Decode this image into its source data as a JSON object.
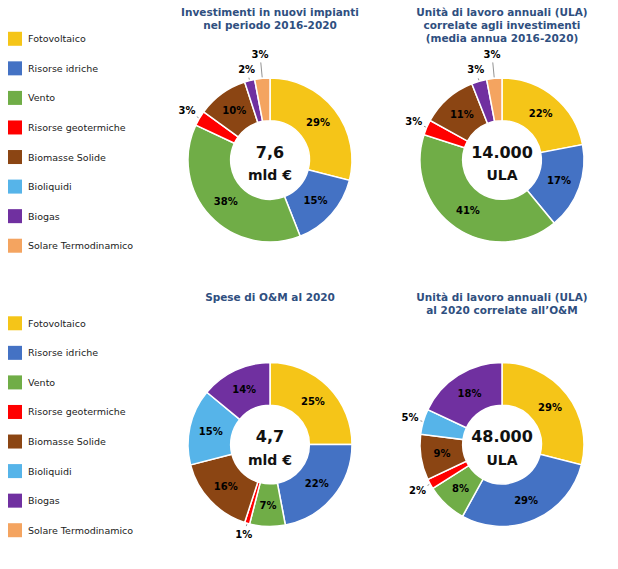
{
  "chart_data": [
    {
      "type": "donut",
      "title": "Investimenti in nuovi impianti\nnel periodo 2016-2020",
      "annotations": [
        "7,6",
        "mld €"
      ],
      "categories": [
        "Fotovoltaico",
        "Risorse idriche",
        "Vento",
        "Risorse geotermiche",
        "Biomasse Solide",
        "Bioliquidi",
        "Biogas",
        "Solare Termodinamico"
      ],
      "values": [
        29,
        15,
        38,
        3,
        10,
        0,
        2,
        3
      ],
      "value_labels": [
        "29%",
        "15%",
        "38%",
        "3%",
        "10%",
        null,
        "2%",
        "3%"
      ],
      "colors": [
        "#F5C518",
        "#4472C4",
        "#70AD47",
        "#FF0000",
        "#8B4513",
        "#56B4E9",
        "#7030A0",
        "#F4A460"
      ],
      "data_labels": true,
      "legend": "left"
    },
    {
      "type": "donut",
      "title": "Unità di lavoro annuali (ULA)\ncorrelate agli investimenti\n(media annua 2016-2020)",
      "annotations": [
        "14.000",
        "ULA"
      ],
      "categories": [
        "Fotovoltaico",
        "Risorse idriche",
        "Vento",
        "Risorse geotermiche",
        "Biomasse Solide",
        "Bioliquidi",
        "Biogas",
        "Solare Termodinamico"
      ],
      "values": [
        22,
        17,
        41,
        3,
        11,
        0,
        3,
        3
      ],
      "value_labels": [
        "22%",
        "17%",
        "41%",
        "3%",
        "11%",
        null,
        "3%",
        "3%"
      ],
      "colors": [
        "#F5C518",
        "#4472C4",
        "#70AD47",
        "#FF0000",
        "#8B4513",
        "#56B4E9",
        "#7030A0",
        "#F4A460"
      ],
      "data_labels": true
    },
    {
      "type": "donut",
      "title": "Spese di O&M al 2020",
      "annotations": [
        "4,7",
        "mld €"
      ],
      "categories": [
        "Fotovoltaico",
        "Risorse idriche",
        "Vento",
        "Risorse geotermiche",
        "Biomasse Solide",
        "Bioliquidi",
        "Biogas",
        "Solare Termodinamico"
      ],
      "values": [
        25,
        22,
        7,
        1,
        16,
        15,
        14,
        0
      ],
      "value_labels": [
        "25%",
        "22%",
        "7%",
        "1%",
        "16%",
        "15%",
        "14%",
        null
      ],
      "colors": [
        "#F5C518",
        "#4472C4",
        "#70AD47",
        "#FF0000",
        "#8B4513",
        "#56B4E9",
        "#7030A0",
        "#F4A460"
      ],
      "data_labels": true,
      "legend": "left"
    },
    {
      "type": "donut",
      "title": "Unità di lavoro annuali (ULA)\nal 2020 correlate all’O&M",
      "annotations": [
        "48.000",
        "ULA"
      ],
      "categories": [
        "Fotovoltaico",
        "Risorse idriche",
        "Vento",
        "Risorse geotermiche",
        "Biomasse Solide",
        "Bioliquidi",
        "Biogas",
        "Solare Termodinamico"
      ],
      "values": [
        29,
        29,
        8,
        2,
        9,
        5,
        18,
        0
      ],
      "value_labels": [
        "29%",
        "29%",
        "8%",
        "2%",
        "9%",
        "5%",
        "18%",
        null
      ],
      "colors": [
        "#F5C518",
        "#4472C4",
        "#70AD47",
        "#FF0000",
        "#8B4513",
        "#56B4E9",
        "#7030A0",
        "#F4A460"
      ],
      "data_labels": true
    }
  ]
}
